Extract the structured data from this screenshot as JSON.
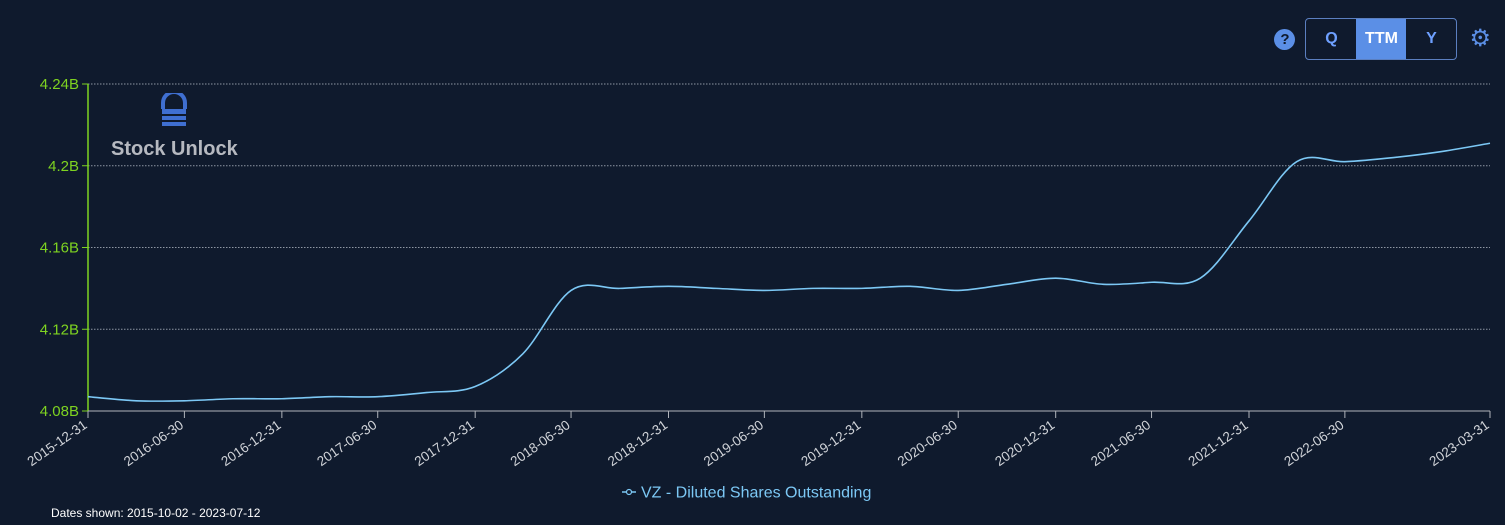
{
  "controls": {
    "help_icon": "question-circle-icon",
    "periods": [
      "Q",
      "TTM",
      "Y"
    ],
    "active_period": "TTM",
    "settings_icon": "gear-icon"
  },
  "watermark": {
    "text": "Stock Unlock",
    "icon": "lock-logo-icon"
  },
  "footer": {
    "dates_shown": "Dates shown: 2015-10-02 - 2023-07-12"
  },
  "colors": {
    "background": "#0f1a2d",
    "line": "#7cc8f5",
    "axis": "#7ed321",
    "grid": "#8e96a3",
    "accent": "#5b8fe6"
  },
  "chart_data": {
    "type": "line",
    "x": [
      "2015-12-31",
      "2016-03-31",
      "2016-06-30",
      "2016-09-30",
      "2016-12-31",
      "2017-03-31",
      "2017-06-30",
      "2017-09-30",
      "2017-12-31",
      "2018-03-31",
      "2018-06-30",
      "2018-09-30",
      "2018-12-31",
      "2019-03-31",
      "2019-06-30",
      "2019-09-30",
      "2019-12-31",
      "2020-03-31",
      "2020-06-30",
      "2020-09-30",
      "2020-12-31",
      "2021-03-31",
      "2021-06-30",
      "2021-09-30",
      "2021-12-31",
      "2022-03-31",
      "2022-06-30",
      "2022-09-30",
      "2022-12-31",
      "2023-03-31"
    ],
    "x_tick_labels": [
      "2015-12-31",
      "2016-06-30",
      "2016-12-31",
      "2017-06-30",
      "2017-12-31",
      "2018-06-30",
      "2018-12-31",
      "2019-06-30",
      "2019-12-31",
      "2020-06-30",
      "2020-12-31",
      "2021-06-30",
      "2021-12-31",
      "2022-06-30",
      "2023-03-31"
    ],
    "series": [
      {
        "name": "VZ - Diluted Shares Outstanding",
        "values": [
          4.087,
          4.085,
          4.085,
          4.086,
          4.086,
          4.087,
          4.087,
          4.089,
          4.092,
          4.108,
          4.139,
          4.14,
          4.141,
          4.14,
          4.139,
          4.14,
          4.14,
          4.141,
          4.139,
          4.142,
          4.145,
          4.142,
          4.143,
          4.145,
          4.173,
          4.202,
          4.202,
          4.204,
          4.207,
          4.211
        ]
      }
    ],
    "y_tick_labels": [
      "4.08B",
      "4.12B",
      "4.16B",
      "4.2B",
      "4.24B"
    ],
    "ylim": [
      4.08,
      4.24
    ],
    "grid": true,
    "legend_position": "bottom-center"
  }
}
